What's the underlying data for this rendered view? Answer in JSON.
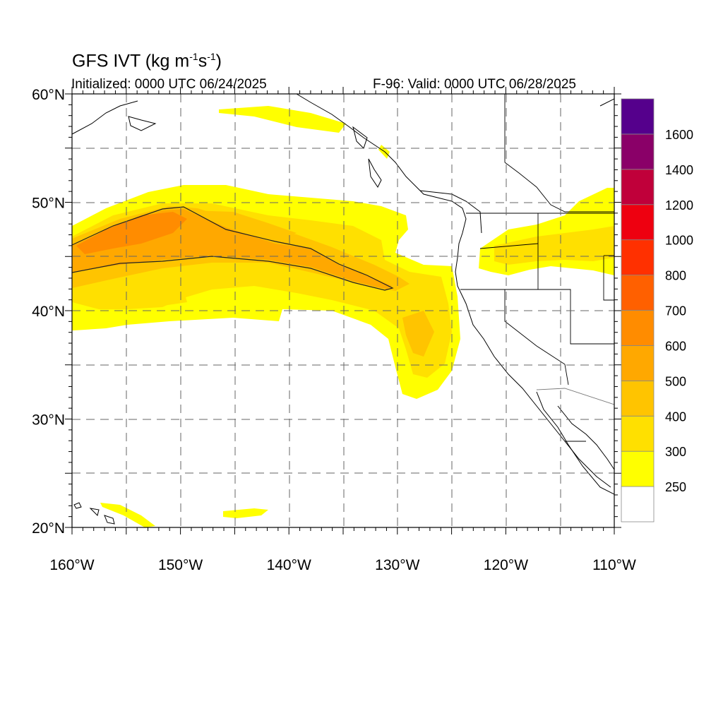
{
  "header": {
    "title_main": "GFS IVT (kg m",
    "title_exp1": "-1",
    "title_mid": "s",
    "title_exp2": "-1",
    "title_end": ")",
    "initialized": "Initialized: 0000 UTC 06/24/2025",
    "valid": "F-96: Valid: 0000 UTC 06/28/2025"
  },
  "map": {
    "extent": {
      "lon": [
        -160,
        -110
      ],
      "lat": [
        20,
        60
      ]
    },
    "gridlines": "dashed",
    "lon_ticks": [
      -160,
      -150,
      -140,
      -130,
      -120,
      -110
    ],
    "lat_ticks": [
      20,
      30,
      40,
      50,
      60
    ],
    "lon_labels": [
      "160°W",
      "150°W",
      "140°W",
      "130°W",
      "120°W",
      "110°W"
    ],
    "lat_labels": [
      "20°N",
      "30°N",
      "40°N",
      "50°N",
      "60°N"
    ]
  },
  "colorbar": {
    "levels": [
      "250",
      "300",
      "400",
      "500",
      "600",
      "700",
      "800",
      "1000",
      "1200",
      "1400",
      "1600"
    ],
    "colors": [
      "#ffffff",
      "#ffff00",
      "#ffe000",
      "#ffc400",
      "#ffa800",
      "#ff8c00",
      "#ff6000",
      "#ff3000",
      "#ee0010",
      "#c0003a",
      "#8a0068",
      "#55008c"
    ]
  }
}
